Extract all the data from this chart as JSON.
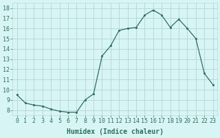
{
  "x": [
    0,
    1,
    2,
    3,
    4,
    5,
    6,
    7,
    8,
    9,
    10,
    11,
    12,
    13,
    14,
    15,
    16,
    17,
    18,
    19,
    20,
    21,
    22,
    23
  ],
  "y": [
    9.5,
    8.7,
    8.5,
    8.4,
    8.1,
    7.9,
    7.8,
    7.8,
    9.0,
    9.6,
    13.3,
    14.3,
    15.8,
    16.0,
    16.1,
    17.3,
    17.8,
    17.3,
    16.1,
    16.9,
    16.0,
    15.0,
    11.6,
    10.5
  ],
  "xlabel": "Humidex (Indice chaleur)",
  "xlim": [
    -0.5,
    23.5
  ],
  "ylim": [
    7.5,
    18.5
  ],
  "yticks": [
    8,
    9,
    10,
    11,
    12,
    13,
    14,
    15,
    16,
    17,
    18
  ],
  "xticks": [
    0,
    1,
    2,
    3,
    4,
    5,
    6,
    7,
    8,
    9,
    10,
    11,
    12,
    13,
    14,
    15,
    16,
    17,
    18,
    19,
    20,
    21,
    22,
    23
  ],
  "line_color": "#2d6e5e",
  "marker_color": "#2d6e5e",
  "bg_color": "#d8f5f5",
  "grid_color": "#b8d8d8",
  "axis_label_color": "#2d6e5e",
  "tick_color": "#2d6e5e",
  "xlabel_fontsize": 7.0,
  "tick_fontsize": 6.0,
  "figsize": [
    3.2,
    2.0
  ],
  "dpi": 100
}
